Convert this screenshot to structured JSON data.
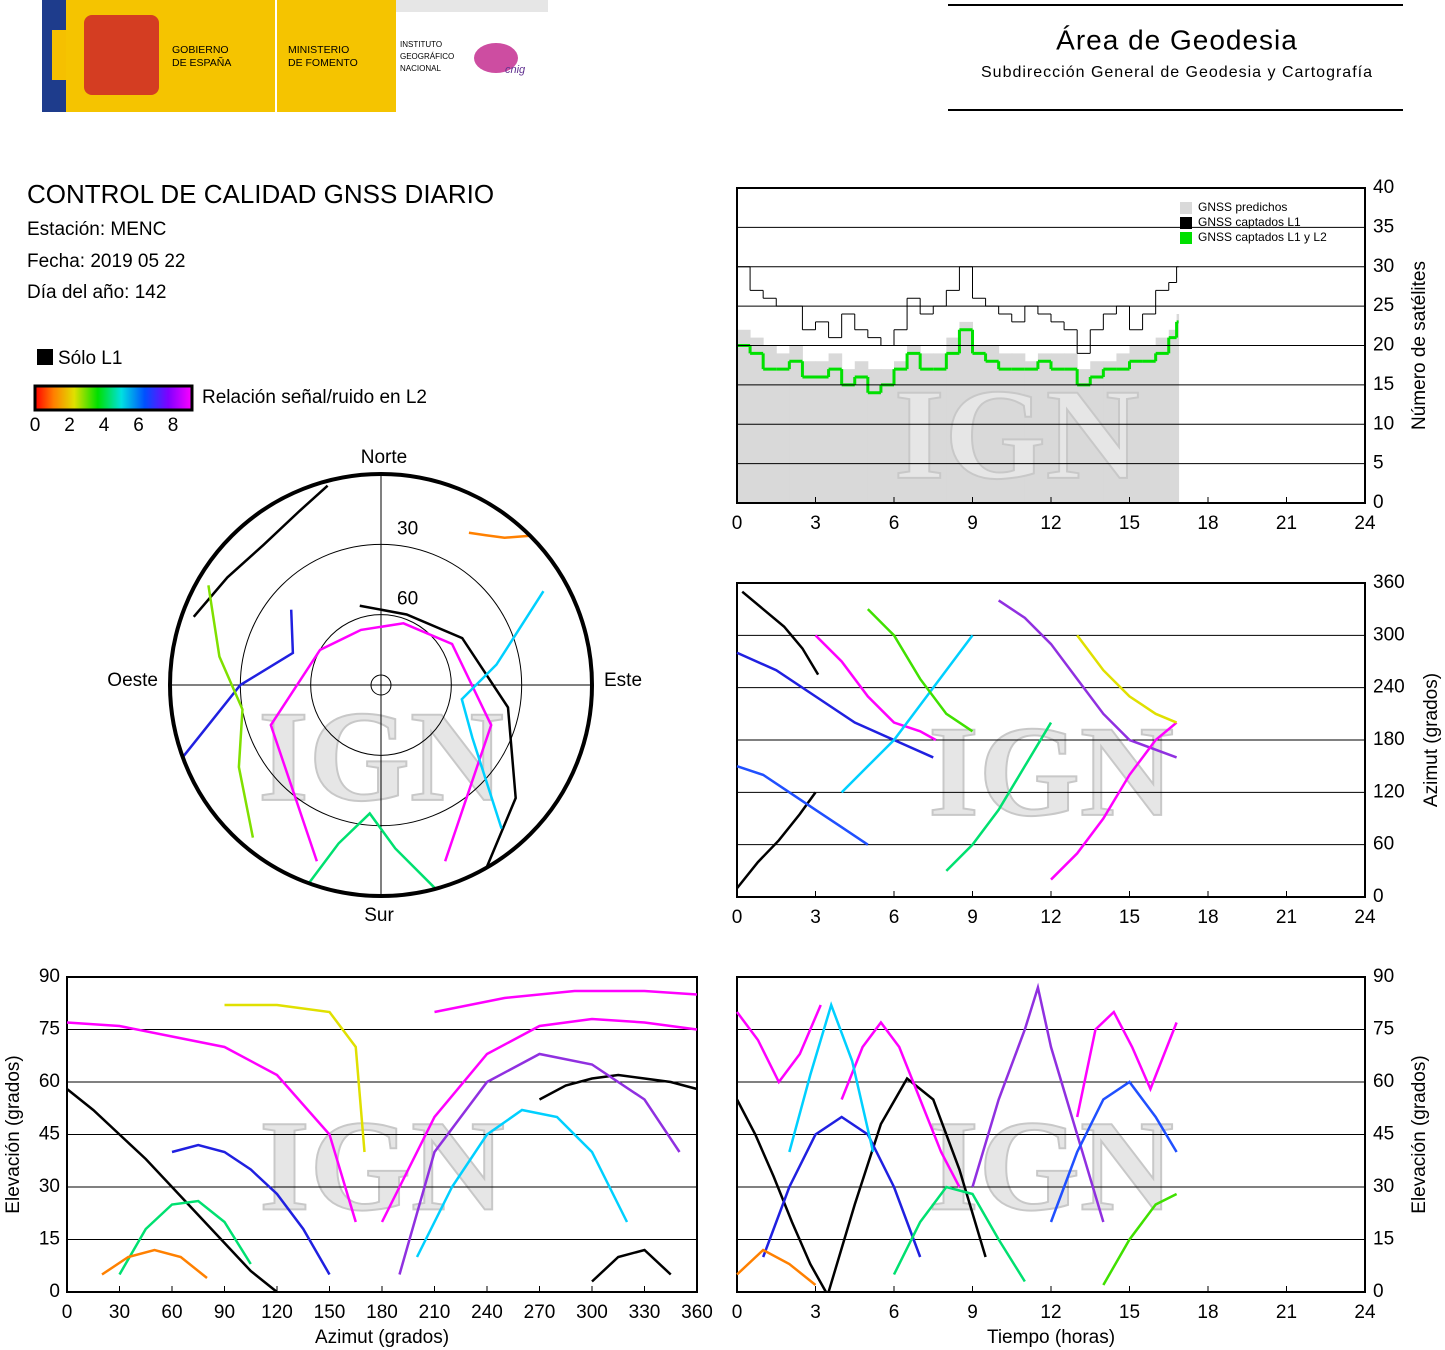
{
  "header": {
    "logo_gobierno": [
      "GOBIERNO",
      "DE ESPAÑA"
    ],
    "logo_ministerio": [
      "MINISTERIO",
      "DE FOMENTO"
    ],
    "logo_ign": [
      "INSTITUTO",
      "GEOGRÁFICO",
      "NACIONAL"
    ],
    "logo_cnig": "cnig",
    "area": "Área de Geodesia",
    "subarea": "Subdirección General de Geodesia y Cartografía"
  },
  "info": {
    "title": "CONTROL DE CALIDAD GNSS DIARIO",
    "station": "Estación: MENC",
    "date": "Fecha: 2019 05 22",
    "doy": "Día del año: 142"
  },
  "legend": {
    "l1_only": "Sólo L1",
    "colorbar": {
      "label": "Relación señal/ruido en L2",
      "lim": [
        0,
        9.1
      ],
      "ticks": [
        0,
        2,
        4,
        6,
        8
      ]
    }
  },
  "watermark": "IGN",
  "chart_data": [
    {
      "type": "step",
      "ylabel": "Número de satélites",
      "xlim": [
        0,
        24
      ],
      "xticks": [
        0,
        3,
        6,
        9,
        12,
        15,
        18,
        21,
        24
      ],
      "ylim": [
        0,
        40
      ],
      "yticks": [
        0,
        5,
        10,
        15,
        20,
        25,
        30,
        35,
        40
      ],
      "grid": true,
      "legend": "upper right",
      "x": [
        0,
        0.5,
        1,
        1.5,
        2,
        2.5,
        3,
        3.5,
        4,
        4.5,
        5,
        5.5,
        6,
        6.5,
        7,
        7.5,
        8,
        8.5,
        9,
        9.5,
        10,
        10.5,
        11,
        11.5,
        12,
        12.5,
        13,
        13.5,
        14,
        14.5,
        15,
        15.5,
        16,
        16.5,
        16.8
      ],
      "series": [
        {
          "name": "GNSS predichos",
          "color": "#d9d9d9",
          "values": [
            22,
            21,
            20,
            19,
            20,
            18,
            18,
            19,
            17,
            18,
            17,
            17,
            18,
            20,
            19,
            19,
            21,
            23,
            20,
            20,
            19,
            19,
            18,
            19,
            19,
            19,
            17,
            18,
            18,
            19,
            20,
            20,
            21,
            22,
            24
          ]
        },
        {
          "name": "GNSS captados L1",
          "color": "#000000",
          "values": [
            30,
            27,
            26,
            25,
            25,
            22,
            23,
            21,
            24,
            22,
            21,
            20,
            22,
            26,
            24,
            25,
            27,
            30,
            26,
            25,
            24,
            23,
            25,
            24,
            23,
            22,
            19,
            22,
            24,
            25,
            22,
            24,
            27,
            28,
            30
          ]
        },
        {
          "name": "GNSS captados L1 y L2",
          "color": "#00e000",
          "values": [
            20,
            19,
            17,
            17,
            18,
            16,
            16,
            17,
            15,
            16,
            14,
            15,
            17,
            19,
            17,
            17,
            19,
            22,
            19,
            18,
            17,
            17,
            17,
            18,
            17,
            17,
            15,
            16,
            17,
            17,
            18,
            18,
            19,
            21,
            23
          ]
        }
      ]
    },
    {
      "type": "track",
      "ylabel": "Azimut (grados)",
      "xlim": [
        0,
        24
      ],
      "xticks": [
        0,
        3,
        6,
        9,
        12,
        15,
        18,
        21,
        24
      ],
      "ylim": [
        0,
        360
      ],
      "yticks": [
        0,
        60,
        120,
        180,
        240,
        300,
        360
      ],
      "grid": true,
      "series": [
        {
          "color": "#000000",
          "x": [
            0.2,
            1,
            1.8,
            2.5,
            3.1
          ],
          "values": [
            350,
            330,
            310,
            285,
            255
          ]
        },
        {
          "color": "#000000",
          "x": [
            0,
            0.8,
            1.6,
            2.4,
            3
          ],
          "values": [
            10,
            40,
            65,
            95,
            120
          ]
        },
        {
          "color": "#ff00ff",
          "x": [
            3,
            4,
            5,
            6,
            7,
            7.6
          ],
          "values": [
            300,
            270,
            230,
            200,
            190,
            180
          ]
        },
        {
          "color": "#2020e0",
          "x": [
            0,
            1.5,
            3,
            4.5,
            6,
            7.5
          ],
          "values": [
            280,
            260,
            230,
            200,
            180,
            160
          ]
        },
        {
          "color": "#00d0ff",
          "x": [
            4,
            5,
            6,
            7,
            8,
            9
          ],
          "values": [
            120,
            150,
            180,
            220,
            260,
            300
          ]
        },
        {
          "color": "#00e070",
          "x": [
            8,
            9,
            10,
            11,
            12
          ],
          "values": [
            30,
            60,
            100,
            150,
            200
          ]
        },
        {
          "color": "#9030e0",
          "x": [
            10,
            11,
            12,
            13,
            14,
            15,
            16.8
          ],
          "values": [
            340,
            320,
            290,
            250,
            210,
            180,
            160
          ]
        },
        {
          "color": "#ff00ff",
          "x": [
            12,
            13,
            14,
            15,
            16,
            16.8
          ],
          "values": [
            20,
            50,
            90,
            140,
            180,
            200
          ]
        },
        {
          "color": "#2050ff",
          "x": [
            0,
            1,
            2,
            3,
            4,
            5
          ],
          "values": [
            150,
            140,
            120,
            100,
            80,
            60
          ]
        },
        {
          "color": "#e0e000",
          "x": [
            13,
            14,
            15,
            16,
            16.8
          ],
          "values": [
            300,
            260,
            230,
            210,
            200
          ]
        },
        {
          "color": "#40e000",
          "x": [
            5,
            6,
            7,
            8,
            9
          ],
          "values": [
            330,
            300,
            250,
            210,
            190
          ]
        }
      ]
    },
    {
      "type": "polar",
      "directions": {
        "north": "Norte",
        "south": "Sur",
        "east": "Este",
        "west": "Oeste"
      },
      "rings": [
        30,
        60
      ],
      "series": [
        {
          "color": "#000000",
          "azimuth": [
            290,
            305,
            320,
            335,
            345
          ],
          "elevation": [
            5,
            10,
            12,
            8,
            2
          ]
        },
        {
          "color": "#000000",
          "azimuth": [
            345,
            20,
            60,
            100,
            130,
            150
          ],
          "elevation": [
            55,
            58,
            50,
            35,
            15,
            0
          ]
        },
        {
          "color": "#ff00ff",
          "azimuth": [
            200,
            250,
            300,
            340,
            20,
            60,
            110,
            160
          ],
          "elevation": [
            10,
            40,
            60,
            65,
            62,
            55,
            40,
            10
          ]
        },
        {
          "color": "#2020e0",
          "azimuth": [
            250,
            270,
            290,
            310
          ],
          "elevation": [
            0,
            30,
            50,
            40
          ]
        },
        {
          "color": "#00d0ff",
          "azimuth": [
            60,
            80,
            100,
            120,
            140
          ],
          "elevation": [
            10,
            40,
            55,
            45,
            10
          ]
        },
        {
          "color": "#00e070",
          "azimuth": [
            200,
            195,
            185,
            175,
            165
          ],
          "elevation": [
            0,
            20,
            35,
            20,
            0
          ]
        },
        {
          "color": "#ff8000",
          "azimuth": [
            45,
            40,
            35,
            30
          ],
          "elevation": [
            0,
            8,
            12,
            15
          ]
        },
        {
          "color": "#80e000",
          "azimuth": [
            300,
            280,
            260,
            240,
            220
          ],
          "elevation": [
            5,
            20,
            30,
            20,
            5
          ]
        }
      ]
    },
    {
      "type": "track",
      "xlabel": "Azimut (grados)",
      "ylabel": "Elevación (grados)",
      "xlim": [
        0,
        360
      ],
      "xticks": [
        0,
        30,
        60,
        90,
        120,
        150,
        180,
        210,
        240,
        270,
        300,
        330,
        360
      ],
      "ylim": [
        0,
        90
      ],
      "yticks": [
        0,
        15,
        30,
        45,
        60,
        75,
        90
      ],
      "grid": true,
      "series": [
        {
          "color": "#000000",
          "x": [
            0,
            15,
            30,
            45,
            60,
            75,
            90,
            105,
            120
          ],
          "values": [
            58,
            52,
            45,
            38,
            30,
            22,
            14,
            6,
            0
          ]
        },
        {
          "color": "#000000",
          "x": [
            270,
            285,
            300,
            315,
            330,
            345,
            360
          ],
          "values": [
            55,
            59,
            61,
            62,
            61,
            60,
            58
          ]
        },
        {
          "color": "#ff00ff",
          "x": [
            0,
            30,
            60,
            90,
            120,
            150,
            165
          ],
          "values": [
            77,
            76,
            73,
            70,
            62,
            45,
            20
          ]
        },
        {
          "color": "#ff00ff",
          "x": [
            180,
            210,
            240,
            270,
            300,
            330,
            360
          ],
          "values": [
            20,
            50,
            68,
            76,
            78,
            77,
            75
          ]
        },
        {
          "color": "#2020e0",
          "x": [
            60,
            75,
            90,
            105,
            120,
            135,
            150
          ],
          "values": [
            40,
            42,
            40,
            35,
            28,
            18,
            5
          ]
        },
        {
          "color": "#00d0ff",
          "x": [
            200,
            220,
            240,
            260,
            280,
            300,
            320
          ],
          "values": [
            10,
            30,
            45,
            52,
            50,
            40,
            20
          ]
        },
        {
          "color": "#00e070",
          "x": [
            30,
            45,
            60,
            75,
            90,
            105
          ],
          "values": [
            5,
            18,
            25,
            26,
            20,
            8
          ]
        },
        {
          "color": "#e0e000",
          "x": [
            90,
            120,
            150,
            165,
            170
          ],
          "values": [
            82,
            82,
            80,
            70,
            40
          ]
        },
        {
          "color": "#9030e0",
          "x": [
            190,
            210,
            240,
            270,
            300,
            330,
            350
          ],
          "values": [
            5,
            40,
            60,
            68,
            65,
            55,
            40
          ]
        },
        {
          "color": "#ff8000",
          "x": [
            20,
            35,
            50,
            65,
            80
          ],
          "values": [
            5,
            10,
            12,
            10,
            4
          ]
        },
        {
          "color": "#000000",
          "x": [
            300,
            315,
            330,
            345
          ],
          "values": [
            3,
            10,
            12,
            5
          ]
        },
        {
          "color": "#ff00ff",
          "x": [
            210,
            250,
            290,
            330,
            360
          ],
          "values": [
            80,
            84,
            86,
            86,
            85
          ]
        }
      ]
    },
    {
      "type": "track",
      "xlabel": "Tiempo (horas)",
      "ylabel": "Elevación (grados)",
      "xlim": [
        0,
        24
      ],
      "xticks": [
        0,
        3,
        6,
        9,
        12,
        15,
        18,
        21,
        24
      ],
      "ylim": [
        0,
        90
      ],
      "yticks": [
        0,
        15,
        30,
        45,
        60,
        75,
        90
      ],
      "grid": true,
      "series": [
        {
          "color": "#000000",
          "x": [
            0,
            0.7,
            1.4,
            2.1,
            2.8,
            3.4
          ],
          "values": [
            55,
            45,
            33,
            20,
            8,
            0
          ]
        },
        {
          "color": "#000000",
          "x": [
            3.5,
            4.5,
            5.5,
            6.5,
            7.5,
            8.5,
            9.5
          ],
          "values": [
            0,
            25,
            48,
            61,
            55,
            35,
            10
          ]
        },
        {
          "color": "#ff00ff",
          "x": [
            0,
            0.8,
            1.6,
            2.4,
            3.2
          ],
          "values": [
            80,
            72,
            60,
            68,
            82
          ]
        },
        {
          "color": "#ff00ff",
          "x": [
            4,
            4.8,
            5.5,
            6.2,
            7,
            7.8,
            8.5
          ],
          "values": [
            55,
            70,
            77,
            70,
            55,
            40,
            30
          ]
        },
        {
          "color": "#2020e0",
          "x": [
            1,
            2,
            3,
            4,
            5,
            6,
            7
          ],
          "values": [
            10,
            30,
            45,
            50,
            45,
            30,
            10
          ]
        },
        {
          "color": "#00d0ff",
          "x": [
            2,
            2.8,
            3.6,
            4.4,
            5.2
          ],
          "values": [
            40,
            62,
            82,
            66,
            40
          ]
        },
        {
          "color": "#00e070",
          "x": [
            6,
            7,
            8,
            9,
            10,
            11
          ],
          "values": [
            5,
            20,
            30,
            28,
            15,
            3
          ]
        },
        {
          "color": "#9030e0",
          "x": [
            9,
            10,
            11,
            11.5,
            12,
            13,
            14
          ],
          "values": [
            30,
            55,
            75,
            87,
            70,
            45,
            20
          ]
        },
        {
          "color": "#2050ff",
          "x": [
            12,
            13,
            14,
            15,
            16,
            16.8
          ],
          "values": [
            20,
            40,
            55,
            60,
            50,
            40
          ]
        },
        {
          "color": "#ff8000",
          "x": [
            0,
            1,
            2,
            3
          ],
          "values": [
            5,
            12,
            8,
            2
          ]
        },
        {
          "color": "#ff00ff",
          "x": [
            13,
            13.7,
            14.4,
            15.1,
            15.8,
            16.8
          ],
          "values": [
            50,
            75,
            80,
            70,
            58,
            77
          ]
        },
        {
          "color": "#40e000",
          "x": [
            14,
            15,
            16,
            16.8
          ],
          "values": [
            2,
            15,
            25,
            28
          ]
        }
      ]
    }
  ]
}
